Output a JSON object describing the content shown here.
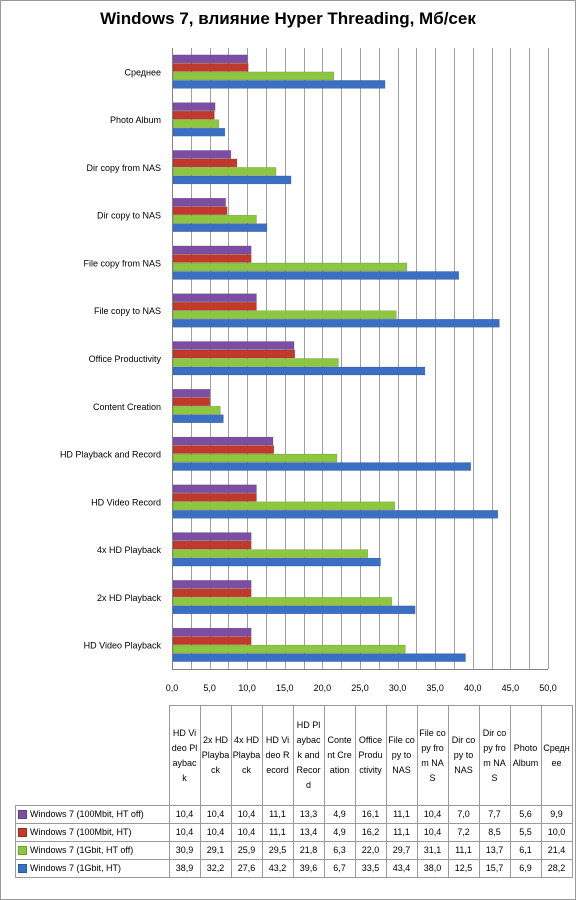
{
  "chart_data": {
    "type": "bar",
    "orientation": "horizontal",
    "title": "Windows 7, влияние Hyper Threading, Мб/сек",
    "xlim": [
      0,
      50
    ],
    "x_ticks": [
      "0,0",
      "5,0",
      "10,0",
      "15,0",
      "20,0",
      "25,0",
      "30,0",
      "35,0",
      "40,0",
      "45,0",
      "50,0"
    ],
    "grid": "vertical",
    "legend": "data-table",
    "categories": [
      "HD Video Playback",
      "2x HD Playback",
      "4x HD Playback",
      "HD Video Record",
      "HD Playback and Record",
      "Content Creation",
      "Office Productivity",
      "File copy to NAS",
      "File copy from NAS",
      "Dir copy to NAS",
      "Dir copy from NAS",
      "Photo Album",
      "Среднее"
    ],
    "table_headers": [
      "HD Video Playback",
      "2x HD Playback",
      "4x HD Playback",
      "HD Video Record",
      "HD Playback and Record",
      "Content Creation",
      "Office Productivity",
      "File copy to NAS",
      "File copy from NAS",
      "Dir copy to NAS",
      "Dir copy from NAS",
      "Photo Album",
      "Среднее"
    ],
    "series": [
      {
        "name": "Windows 7 (100Mbit, HT off)",
        "color": "#7b4ea3",
        "values": [
          10.4,
          10.4,
          10.4,
          11.1,
          13.3,
          4.9,
          16.1,
          11.1,
          10.4,
          7.0,
          7.7,
          5.6,
          9.9
        ],
        "labels": [
          "10,4",
          "10,4",
          "10,4",
          "11,1",
          "13,3",
          "4,9",
          "16,1",
          "11,1",
          "10,4",
          "7,0",
          "7,7",
          "5,6",
          "9,9"
        ]
      },
      {
        "name": "Windows 7 (100Mbit, HT)",
        "color": "#c0392b",
        "values": [
          10.4,
          10.4,
          10.4,
          11.1,
          13.4,
          4.9,
          16.2,
          11.1,
          10.4,
          7.2,
          8.5,
          5.5,
          10.0
        ],
        "labels": [
          "10,4",
          "10,4",
          "10,4",
          "11,1",
          "13,4",
          "4,9",
          "16,2",
          "11,1",
          "10,4",
          "7,2",
          "8,5",
          "5,5",
          "10,0"
        ]
      },
      {
        "name": "Windows 7 (1Gbit, HT off)",
        "color": "#8dc63f",
        "values": [
          30.9,
          29.1,
          25.9,
          29.5,
          21.8,
          6.3,
          22.0,
          29.7,
          31.1,
          11.1,
          13.7,
          6.1,
          21.4
        ],
        "labels": [
          "30,9",
          "29,1",
          "25,9",
          "29,5",
          "21,8",
          "6,3",
          "22,0",
          "29,7",
          "31,1",
          "11,1",
          "13,7",
          "6,1",
          "21,4"
        ]
      },
      {
        "name": "Windows 7 (1Gbit, HT)",
        "color": "#3a6fc4",
        "values": [
          38.9,
          32.2,
          27.6,
          43.2,
          39.6,
          6.7,
          33.5,
          43.4,
          38.0,
          12.5,
          15.7,
          6.9,
          28.2
        ],
        "labels": [
          "38,9",
          "32,2",
          "27,6",
          "43,2",
          "39,6",
          "6,7",
          "33,5",
          "43,4",
          "38,0",
          "12,5",
          "15,7",
          "6,9",
          "28,2"
        ]
      }
    ]
  }
}
